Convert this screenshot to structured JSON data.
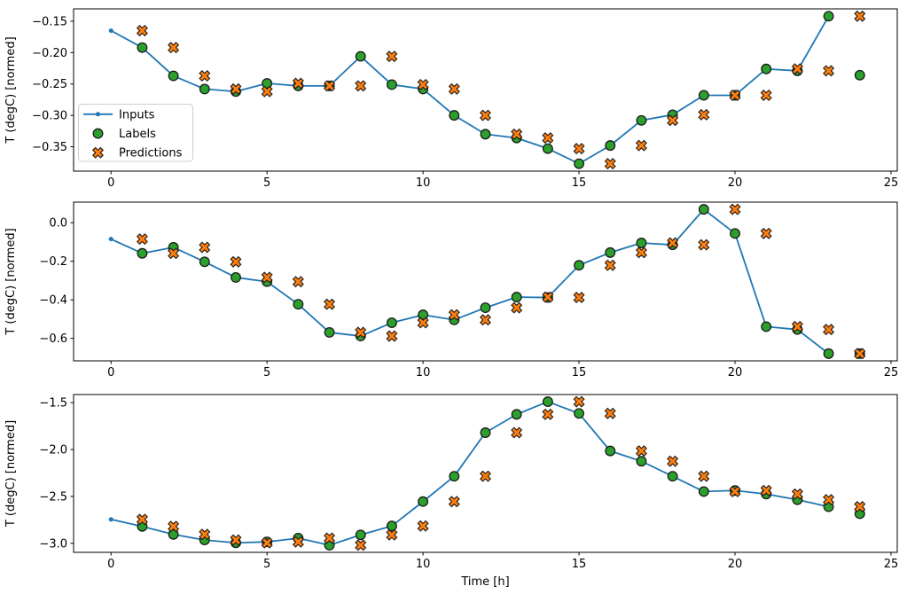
{
  "figure": {
    "background": "#ffffff",
    "text_color": "#000000"
  },
  "legend": {
    "position": "center left of top subplot",
    "items": [
      {
        "label": "Inputs",
        "marker": "line-dot",
        "color": "#1f77b4"
      },
      {
        "label": "Labels",
        "marker": "circle",
        "color": "#2ca02c"
      },
      {
        "label": "Predictions",
        "marker": "x",
        "color": "#ff7f0e"
      }
    ]
  },
  "colors": {
    "inputs": "#1f77b4",
    "labels": "#2ca02c",
    "predictions": "#ff7f0e",
    "marker_edge": "#1a1a1a",
    "legend_border": "#cccccc"
  },
  "chart_data": [
    {
      "type": "line",
      "title": "",
      "xlabel": "",
      "ylabel": "T (degC) [normed]",
      "xlim": [
        -1.2,
        25.2
      ],
      "ylim": [
        -0.3888,
        -0.1303
      ],
      "grid": false,
      "legend_position": "center left",
      "show_legend": true,
      "xticks": [
        0,
        5,
        10,
        15,
        20,
        25
      ],
      "xtick_labels": [
        "0",
        "5",
        "10",
        "15",
        "20",
        "25"
      ],
      "yticks": [
        -0.15,
        -0.2,
        -0.25,
        -0.3,
        -0.35
      ],
      "ytick_labels": [
        "−0.15",
        "−0.20",
        "−0.25",
        "−0.30",
        "−0.35"
      ],
      "series": [
        {
          "name": "Inputs",
          "style": "line-dot",
          "color": "#1f77b4",
          "x": [
            0,
            1,
            2,
            3,
            4,
            5,
            6,
            7,
            8,
            9,
            10,
            11,
            12,
            13,
            14,
            15,
            16,
            17,
            18,
            19,
            20,
            21,
            22,
            23
          ],
          "y": [
            -0.165,
            -0.192,
            -0.237,
            -0.258,
            -0.262,
            -0.249,
            -0.253,
            -0.253,
            -0.206,
            -0.251,
            -0.258,
            -0.3,
            -0.33,
            -0.336,
            -0.353,
            -0.377,
            -0.348,
            -0.308,
            -0.299,
            -0.268,
            -0.268,
            -0.226,
            -0.229,
            -0.142
          ]
        },
        {
          "name": "Labels",
          "style": "circle",
          "color": "#2ca02c",
          "x": [
            1,
            2,
            3,
            4,
            5,
            6,
            7,
            8,
            9,
            10,
            11,
            12,
            13,
            14,
            15,
            16,
            17,
            18,
            19,
            20,
            21,
            22,
            23,
            24
          ],
          "y": [
            -0.192,
            -0.237,
            -0.258,
            -0.262,
            -0.249,
            -0.253,
            -0.253,
            -0.206,
            -0.251,
            -0.258,
            -0.3,
            -0.33,
            -0.336,
            -0.353,
            -0.377,
            -0.348,
            -0.308,
            -0.299,
            -0.268,
            -0.268,
            -0.226,
            -0.229,
            -0.142,
            -0.236
          ]
        },
        {
          "name": "Predictions",
          "style": "x",
          "color": "#ff7f0e",
          "x": [
            1,
            2,
            3,
            4,
            5,
            6,
            7,
            8,
            9,
            10,
            11,
            12,
            13,
            14,
            15,
            16,
            17,
            18,
            19,
            20,
            21,
            22,
            23,
            24
          ],
          "y": [
            -0.165,
            -0.192,
            -0.237,
            -0.258,
            -0.262,
            -0.249,
            -0.253,
            -0.253,
            -0.206,
            -0.251,
            -0.258,
            -0.3,
            -0.33,
            -0.336,
            -0.353,
            -0.377,
            -0.348,
            -0.308,
            -0.299,
            -0.268,
            -0.268,
            -0.226,
            -0.229,
            -0.142
          ]
        }
      ]
    },
    {
      "type": "line",
      "title": "",
      "xlabel": "",
      "ylabel": "T (degC) [normed]",
      "xlim": [
        -1.2,
        25.2
      ],
      "ylim": [
        -0.7164,
        0.1064
      ],
      "grid": false,
      "show_legend": false,
      "xticks": [
        0,
        5,
        10,
        15,
        20,
        25
      ],
      "xtick_labels": [
        "0",
        "5",
        "10",
        "15",
        "20",
        "25"
      ],
      "yticks": [
        0.0,
        -0.2,
        -0.4,
        -0.6
      ],
      "ytick_labels": [
        "0.0",
        "−0.2",
        "−0.4",
        "−0.6"
      ],
      "series": [
        {
          "name": "Inputs",
          "style": "line-dot",
          "color": "#1f77b4",
          "x": [
            0,
            1,
            2,
            3,
            4,
            5,
            6,
            7,
            8,
            9,
            10,
            11,
            12,
            13,
            14,
            15,
            16,
            17,
            18,
            19,
            20,
            21,
            22,
            23
          ],
          "y": [
            -0.085,
            -0.159,
            -0.128,
            -0.203,
            -0.284,
            -0.306,
            -0.423,
            -0.569,
            -0.588,
            -0.519,
            -0.478,
            -0.504,
            -0.441,
            -0.386,
            -0.388,
            -0.221,
            -0.155,
            -0.105,
            -0.115,
            0.069,
            -0.056,
            -0.539,
            -0.554,
            -0.679
          ]
        },
        {
          "name": "Labels",
          "style": "circle",
          "color": "#2ca02c",
          "x": [
            1,
            2,
            3,
            4,
            5,
            6,
            7,
            8,
            9,
            10,
            11,
            12,
            13,
            14,
            15,
            16,
            17,
            18,
            19,
            20,
            21,
            22,
            23,
            24
          ],
          "y": [
            -0.159,
            -0.128,
            -0.203,
            -0.284,
            -0.306,
            -0.423,
            -0.569,
            -0.588,
            -0.519,
            -0.478,
            -0.504,
            -0.441,
            -0.386,
            -0.388,
            -0.221,
            -0.155,
            -0.105,
            -0.115,
            0.069,
            -0.056,
            -0.539,
            -0.554,
            -0.679,
            -0.679
          ]
        },
        {
          "name": "Predictions",
          "style": "x",
          "color": "#ff7f0e",
          "x": [
            1,
            2,
            3,
            4,
            5,
            6,
            7,
            8,
            9,
            10,
            11,
            12,
            13,
            14,
            15,
            16,
            17,
            18,
            19,
            20,
            21,
            22,
            23,
            24
          ],
          "y": [
            -0.085,
            -0.159,
            -0.128,
            -0.203,
            -0.284,
            -0.306,
            -0.423,
            -0.569,
            -0.588,
            -0.519,
            -0.478,
            -0.504,
            -0.441,
            -0.386,
            -0.388,
            -0.221,
            -0.155,
            -0.105,
            -0.115,
            0.069,
            -0.056,
            -0.539,
            -0.554,
            -0.679
          ]
        }
      ]
    },
    {
      "type": "line",
      "title": "",
      "xlabel": "Time [h]",
      "ylabel": "T (degC) [normed]",
      "xlim": [
        -1.2,
        25.2
      ],
      "ylim": [
        -3.0965,
        -1.4135
      ],
      "grid": false,
      "show_legend": false,
      "xticks": [
        0,
        5,
        10,
        15,
        20,
        25
      ],
      "xtick_labels": [
        "0",
        "5",
        "10",
        "15",
        "20",
        "25"
      ],
      "yticks": [
        -1.5,
        -2.0,
        -2.5,
        -3.0
      ],
      "ytick_labels": [
        "−1.5",
        "−2.0",
        "−2.5",
        "−3.0"
      ],
      "series": [
        {
          "name": "Inputs",
          "style": "line-dot",
          "color": "#1f77b4",
          "x": [
            0,
            1,
            2,
            3,
            4,
            5,
            6,
            7,
            8,
            9,
            10,
            11,
            12,
            13,
            14,
            15,
            16,
            17,
            18,
            19,
            20,
            21,
            22,
            23
          ],
          "y": [
            -2.745,
            -2.82,
            -2.905,
            -2.965,
            -2.995,
            -2.985,
            -2.945,
            -3.02,
            -2.91,
            -2.815,
            -2.555,
            -2.285,
            -1.82,
            -1.625,
            -1.49,
            -1.615,
            -2.015,
            -2.125,
            -2.285,
            -2.448,
            -2.437,
            -2.475,
            -2.535,
            -2.61
          ]
        },
        {
          "name": "Labels",
          "style": "circle",
          "color": "#2ca02c",
          "x": [
            1,
            2,
            3,
            4,
            5,
            6,
            7,
            8,
            9,
            10,
            11,
            12,
            13,
            14,
            15,
            16,
            17,
            18,
            19,
            20,
            21,
            22,
            23,
            24
          ],
          "y": [
            -2.82,
            -2.905,
            -2.965,
            -2.995,
            -2.985,
            -2.945,
            -3.02,
            -2.91,
            -2.815,
            -2.555,
            -2.285,
            -1.82,
            -1.625,
            -1.49,
            -1.615,
            -2.015,
            -2.125,
            -2.285,
            -2.448,
            -2.437,
            -2.475,
            -2.535,
            -2.61,
            -2.685
          ]
        },
        {
          "name": "Predictions",
          "style": "x",
          "color": "#ff7f0e",
          "x": [
            1,
            2,
            3,
            4,
            5,
            6,
            7,
            8,
            9,
            10,
            11,
            12,
            13,
            14,
            15,
            16,
            17,
            18,
            19,
            20,
            21,
            22,
            23,
            24
          ],
          "y": [
            -2.745,
            -2.82,
            -2.905,
            -2.965,
            -2.995,
            -2.985,
            -2.945,
            -3.02,
            -2.91,
            -2.815,
            -2.555,
            -2.285,
            -1.82,
            -1.625,
            -1.49,
            -1.615,
            -2.015,
            -2.125,
            -2.285,
            -2.448,
            -2.437,
            -2.475,
            -2.535,
            -2.61
          ]
        }
      ]
    }
  ]
}
